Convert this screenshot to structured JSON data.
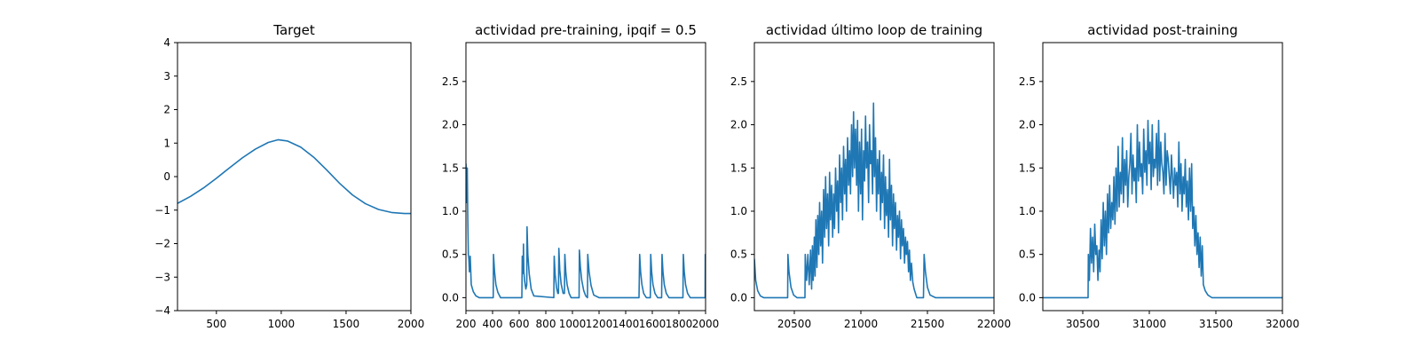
{
  "chart_data": [
    {
      "type": "line",
      "title": "Target",
      "xlabel": "",
      "ylabel": "",
      "xlim": [
        200,
        2000
      ],
      "ylim": [
        -4,
        4
      ],
      "xticks": [
        500,
        1000,
        1500,
        2000
      ],
      "yticks": [
        -4,
        -3,
        -2,
        -1,
        0,
        1,
        2,
        3,
        4
      ],
      "grid": false,
      "color": "#1f77b4",
      "series": [
        {
          "x": [
            200,
            300,
            400,
            500,
            600,
            700,
            800,
            900,
            975,
            1050,
            1150,
            1250,
            1350,
            1450,
            1550,
            1650,
            1750,
            1850,
            1950,
            2000
          ],
          "values": [
            -0.8,
            -0.59,
            -0.34,
            -0.05,
            0.26,
            0.56,
            0.82,
            1.02,
            1.1,
            1.06,
            0.88,
            0.58,
            0.2,
            -0.2,
            -0.55,
            -0.81,
            -0.98,
            -1.07,
            -1.1,
            -1.1
          ]
        }
      ]
    },
    {
      "type": "line",
      "title": "actividad pre-training, ipqif = 0.5",
      "xlabel": "",
      "ylabel": "",
      "xlim": [
        200,
        2000
      ],
      "ylim": [
        -0.15,
        2.95
      ],
      "xticks": [
        200,
        400,
        600,
        800,
        1000,
        1200,
        1400,
        1600,
        1800,
        2000
      ],
      "yticks": [
        0.0,
        0.5,
        1.0,
        1.5,
        2.0,
        2.5
      ],
      "grid": false,
      "color": "#1f77b4",
      "series": [
        {
          "x": [
            200,
            203,
            206,
            210,
            214,
            218,
            222,
            226,
            232,
            240,
            255,
            275,
            300,
            350,
            405,
            407,
            415,
            425,
            440,
            460,
            620,
            623,
            630,
            632,
            635,
            640,
            650,
            657,
            659,
            665,
            675,
            690,
            710,
            860,
            863,
            870,
            880,
            890,
            895,
            898,
            905,
            915,
            930,
            940,
            943,
            950,
            960,
            975,
            990,
            1050,
            1052,
            1060,
            1070,
            1085,
            1100,
            1113,
            1115,
            1125,
            1140,
            1160,
            1200,
            1500,
            1505,
            1512,
            1522,
            1535,
            1555,
            1585,
            1588,
            1595,
            1605,
            1620,
            1640,
            1670,
            1673,
            1680,
            1690,
            1705,
            1725,
            1830,
            1833,
            1840,
            1850,
            1865,
            1885,
            1910,
            1997,
            1998,
            2000
          ],
          "values": [
            1.55,
            1.4,
            1.1,
            1.5,
            0.9,
            0.5,
            0.45,
            0.3,
            0.48,
            0.15,
            0.07,
            0.02,
            0.0,
            0.0,
            0.0,
            0.5,
            0.3,
            0.15,
            0.06,
            0.0,
            0.0,
            0.48,
            0.28,
            0.62,
            0.3,
            0.2,
            0.1,
            0.15,
            0.82,
            0.5,
            0.28,
            0.1,
            0.02,
            0.0,
            0.48,
            0.27,
            0.12,
            0.05,
            0.05,
            0.57,
            0.32,
            0.16,
            0.05,
            0.05,
            0.5,
            0.3,
            0.15,
            0.05,
            0.0,
            0.0,
            0.55,
            0.35,
            0.2,
            0.08,
            0.02,
            0.0,
            0.5,
            0.3,
            0.14,
            0.03,
            0.0,
            0.0,
            0.5,
            0.3,
            0.15,
            0.05,
            0.0,
            0.0,
            0.5,
            0.3,
            0.15,
            0.05,
            0.0,
            0.0,
            0.5,
            0.3,
            0.15,
            0.05,
            0.0,
            0.0,
            0.5,
            0.3,
            0.15,
            0.05,
            0.0,
            0.0,
            0.0,
            0.5,
            0.5
          ]
        }
      ]
    },
    {
      "type": "line",
      "title": "actividad último loop de training",
      "xlabel": "",
      "ylabel": "",
      "xlim": [
        20200,
        22000
      ],
      "ylim": [
        -0.15,
        2.95
      ],
      "xticks": [
        20500,
        21000,
        21500,
        22000
      ],
      "yticks": [
        0.0,
        0.5,
        1.0,
        1.5,
        2.0,
        2.5
      ],
      "grid": false,
      "color": "#1f77b4",
      "series": [
        {
          "x": [
            20200,
            20210,
            20225,
            20245,
            20270,
            20300,
            20450,
            20452,
            20460,
            20475,
            20495,
            20520,
            20580,
            20582,
            20592,
            20602,
            20612,
            20622,
            20630,
            20636,
            20642,
            20650,
            20656,
            20662,
            20670,
            20676,
            20684,
            20690,
            20698,
            20705,
            20712,
            20720,
            20728,
            20735,
            20742,
            20750,
            20758,
            20765,
            20772,
            20780,
            20788,
            20795,
            20802,
            20810,
            20818,
            20825,
            20832,
            20840,
            20848,
            20855,
            20862,
            20870,
            20878,
            20885,
            20892,
            20900,
            20908,
            20915,
            20922,
            20930,
            20938,
            20945,
            20952,
            20960,
            20968,
            20975,
            20982,
            20990,
            20998,
            21005,
            21012,
            21020,
            21028,
            21035,
            21042,
            21050,
            21058,
            21065,
            21072,
            21080,
            21088,
            21095,
            21102,
            21110,
            21118,
            21125,
            21132,
            21140,
            21148,
            21155,
            21162,
            21170,
            21178,
            21185,
            21192,
            21200,
            21208,
            21215,
            21222,
            21230,
            21238,
            21245,
            21252,
            21260,
            21268,
            21275,
            21282,
            21290,
            21298,
            21305,
            21312,
            21320,
            21328,
            21335,
            21342,
            21350,
            21358,
            21365,
            21372,
            21380,
            21390,
            21400,
            21410,
            21420,
            21440,
            21470,
            21475,
            21485,
            21500,
            21520,
            21560,
            22000
          ],
          "values": [
            0.45,
            0.2,
            0.08,
            0.02,
            0.0,
            0.0,
            0.0,
            0.5,
            0.3,
            0.12,
            0.03,
            0.0,
            0.0,
            0.5,
            0.2,
            0.5,
            0.15,
            0.55,
            0.1,
            0.6,
            0.2,
            0.7,
            0.25,
            0.9,
            0.35,
            0.95,
            0.5,
            1.1,
            0.6,
            1.0,
            0.4,
            1.25,
            0.7,
            1.4,
            0.8,
            1.2,
            0.6,
            1.45,
            0.9,
            1.3,
            0.7,
            1.2,
            0.8,
            1.5,
            1.0,
            1.35,
            0.75,
            1.65,
            1.1,
            1.5,
            0.9,
            1.75,
            1.2,
            1.6,
            1.0,
            1.85,
            1.3,
            1.7,
            1.2,
            2.0,
            1.4,
            2.15,
            1.5,
            1.95,
            1.3,
            2.05,
            1.0,
            1.8,
            1.2,
            1.95,
            0.9,
            1.7,
            1.35,
            2.1,
            1.5,
            1.8,
            1.1,
            2.0,
            1.55,
            1.7,
            1.2,
            2.25,
            1.4,
            1.85,
            1.0,
            1.6,
            1.2,
            1.7,
            0.9,
            1.45,
            1.1,
            1.65,
            0.8,
            1.4,
            0.95,
            1.25,
            0.7,
            1.6,
            0.9,
            1.3,
            0.6,
            1.2,
            0.8,
            1.1,
            0.55,
            0.95,
            0.7,
            1.0,
            0.45,
            0.9,
            0.6,
            0.8,
            0.4,
            0.7,
            0.5,
            0.65,
            0.3,
            0.55,
            0.2,
            0.4,
            0.18,
            0.1,
            0.05,
            0.0,
            0.0,
            0.0,
            0.5,
            0.3,
            0.12,
            0.03,
            0.0,
            0.0
          ]
        }
      ]
    },
    {
      "type": "line",
      "title": "actividad post-training",
      "xlabel": "",
      "ylabel": "",
      "xlim": [
        30200,
        32000
      ],
      "ylim": [
        -0.15,
        2.95
      ],
      "xticks": [
        30500,
        31000,
        31500,
        32000
      ],
      "yticks": [
        0.0,
        0.5,
        1.0,
        1.5,
        2.0,
        2.5
      ],
      "grid": false,
      "color": "#1f77b4",
      "series": [
        {
          "x": [
            30200,
            30540,
            30542,
            30550,
            30558,
            30566,
            30574,
            30582,
            30590,
            30598,
            30606,
            30614,
            30622,
            30630,
            30638,
            30646,
            30654,
            30662,
            30670,
            30678,
            30686,
            30694,
            30702,
            30710,
            30718,
            30726,
            30734,
            30742,
            30750,
            30758,
            30766,
            30774,
            30782,
            30790,
            30798,
            30806,
            30814,
            30822,
            30830,
            30838,
            30846,
            30854,
            30862,
            30870,
            30878,
            30886,
            30894,
            30902,
            30910,
            30918,
            30926,
            30934,
            30942,
            30950,
            30958,
            30966,
            30974,
            30982,
            30990,
            30998,
            31006,
            31014,
            31022,
            31030,
            31038,
            31046,
            31054,
            31062,
            31070,
            31078,
            31086,
            31094,
            31102,
            31110,
            31118,
            31126,
            31134,
            31142,
            31150,
            31158,
            31166,
            31174,
            31182,
            31190,
            31198,
            31206,
            31214,
            31222,
            31230,
            31238,
            31246,
            31254,
            31262,
            31270,
            31278,
            31286,
            31294,
            31302,
            31310,
            31318,
            31326,
            31334,
            31342,
            31350,
            31358,
            31366,
            31374,
            31382,
            31390,
            31398,
            31406,
            31420,
            31440,
            31470,
            31500,
            32000
          ],
          "values": [
            0.0,
            0.0,
            0.5,
            0.2,
            0.8,
            0.4,
            0.7,
            0.3,
            0.85,
            0.5,
            0.6,
            0.2,
            0.55,
            0.3,
            0.9,
            0.45,
            1.1,
            0.6,
            1.0,
            0.5,
            1.2,
            0.75,
            1.3,
            0.8,
            1.1,
            0.9,
            1.4,
            0.85,
            1.5,
            1.0,
            1.75,
            1.05,
            1.45,
            1.2,
            1.85,
            1.1,
            1.6,
            1.3,
            1.7,
            1.05,
            1.4,
            1.55,
            1.9,
            1.2,
            1.65,
            1.35,
            1.5,
            1.1,
            2.0,
            1.35,
            1.8,
            1.4,
            1.55,
            1.2,
            1.95,
            1.45,
            1.7,
            1.3,
            2.05,
            1.55,
            1.8,
            1.25,
            2.0,
            1.4,
            1.6,
            1.5,
            1.9,
            1.3,
            2.05,
            1.35,
            1.8,
            1.55,
            1.45,
            1.2,
            1.9,
            1.3,
            1.7,
            1.6,
            1.4,
            1.2,
            1.65,
            1.4,
            1.15,
            1.5,
            1.3,
            1.45,
            1.05,
            1.8,
            1.2,
            1.55,
            1.0,
            1.4,
            1.2,
            1.6,
            1.05,
            1.35,
            0.9,
            1.5,
            1.0,
            1.55,
            0.8,
            1.05,
            0.6,
            0.95,
            0.5,
            0.75,
            0.35,
            0.7,
            0.25,
            0.6,
            0.15,
            0.08,
            0.03,
            0.0,
            0.0,
            0.0
          ]
        }
      ]
    }
  ]
}
